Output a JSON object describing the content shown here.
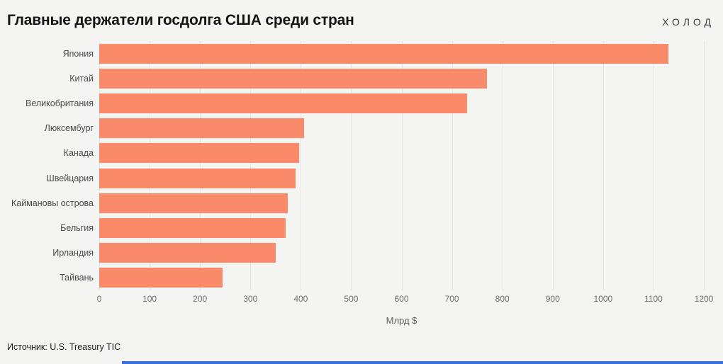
{
  "header": {
    "title": "Главные держатели госдолга США среди стран",
    "logo": "ХОЛОД"
  },
  "chart_data": {
    "type": "bar",
    "orientation": "horizontal",
    "title": "Главные держатели госдолга США среди стран",
    "categories": [
      "Япония",
      "Китай",
      "Великобритания",
      "Люксембург",
      "Канада",
      "Швейцария",
      "Каймановы острова",
      "Бельгия",
      "Ирландия",
      "Тайвань"
    ],
    "values": [
      1130,
      770,
      730,
      406,
      397,
      390,
      374,
      370,
      350,
      245
    ],
    "xlabel": "Млрд $",
    "ylabel": "",
    "xlim": [
      0,
      1200
    ],
    "xticks": [
      0,
      100,
      200,
      300,
      400,
      500,
      600,
      700,
      800,
      900,
      1000,
      1100,
      1200
    ],
    "grid": true,
    "legend": false,
    "bar_color": "#f98a6a",
    "gridline_color": "#e4e4e2",
    "background_color": "#f4f4f3"
  },
  "footer": {
    "source": "Источник: U.S. Treasury TIC"
  },
  "accent": {
    "color": "#3b6fe0"
  }
}
